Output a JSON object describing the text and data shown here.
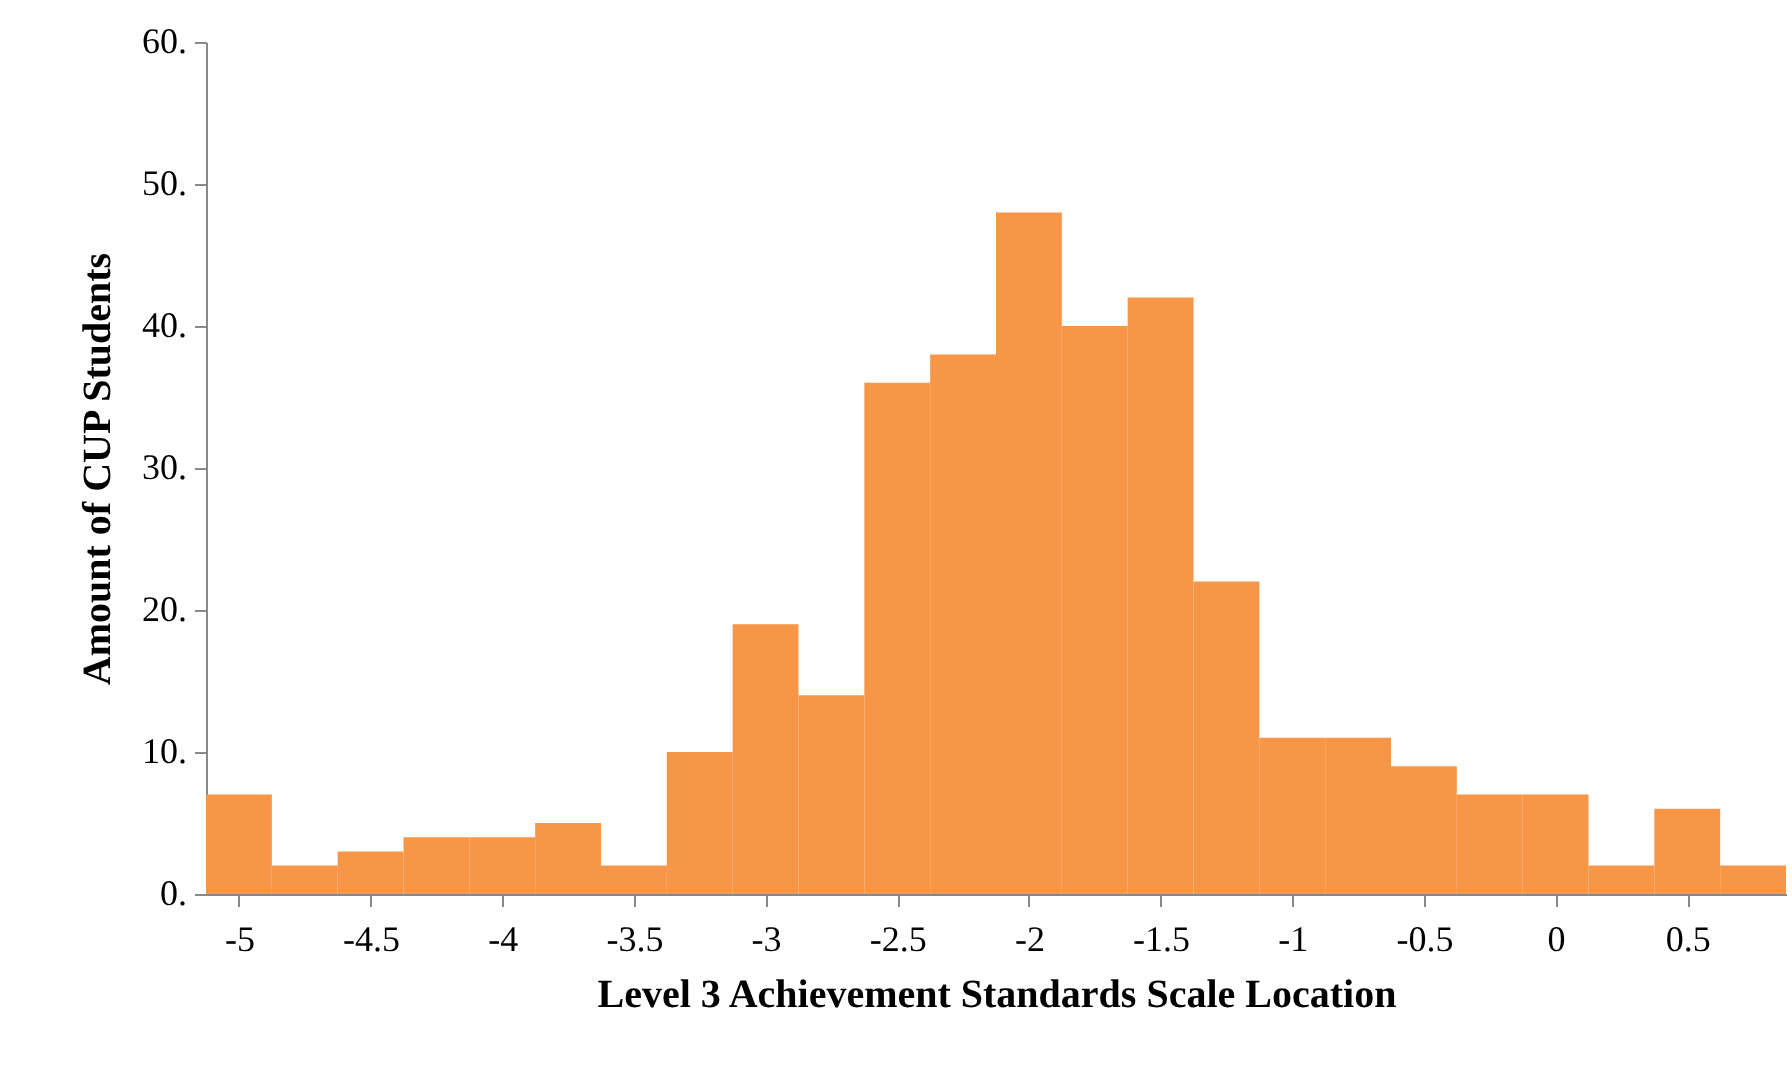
{
  "chart_data": {
    "type": "histogram",
    "xlabel": "Level 3 Achievement Standards Scale Location",
    "ylabel": "Amount of CUP Students",
    "bins": [
      -5.125,
      -4.875,
      -4.625,
      -4.375,
      -4.125,
      -3.875,
      -3.625,
      -3.375,
      -3.125,
      -2.875,
      -2.625,
      -2.375,
      -2.125,
      -1.875,
      -1.625,
      -1.375,
      -1.125,
      -0.875,
      -0.625,
      -0.375,
      -0.125,
      0.125,
      0.375,
      0.625,
      0.875
    ],
    "values": [
      7,
      2,
      3,
      4,
      4,
      5,
      2,
      10,
      19,
      14,
      36,
      38,
      48,
      40,
      42,
      22,
      11,
      11,
      9,
      7,
      7,
      2,
      6,
      2
    ],
    "color": "#f79646",
    "xlim": [
      -5.125,
      0.875
    ],
    "xticks": [
      -5,
      -4.5,
      -4,
      -3.5,
      -3,
      -2.5,
      -2,
      -1.5,
      -1,
      -0.5,
      0,
      0.5
    ],
    "ylim": [
      0,
      60
    ],
    "yticks": [
      {
        "value": 0,
        "label": "0."
      },
      {
        "value": 10,
        "label": "10."
      },
      {
        "value": 20,
        "label": "20."
      },
      {
        "value": 30,
        "label": "30."
      },
      {
        "value": 40,
        "label": "40."
      },
      {
        "value": 50,
        "label": "50."
      },
      {
        "value": 60,
        "label": "60."
      }
    ],
    "grid": false
  }
}
